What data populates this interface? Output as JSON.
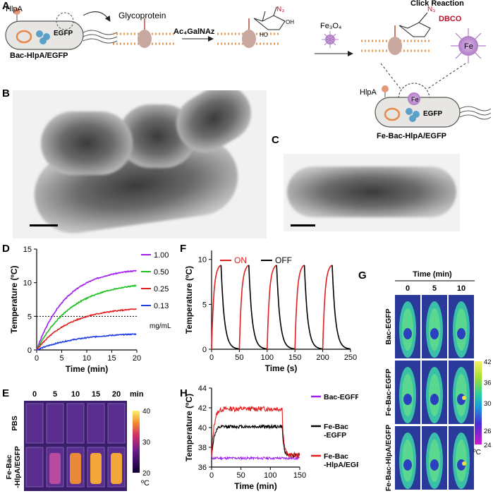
{
  "panel_labels": {
    "A": "A",
    "B": "B",
    "C": "C",
    "D": "D",
    "E": "E",
    "F": "F",
    "G": "G",
    "H": "H"
  },
  "panel_a": {
    "hlpa": "HlpA",
    "egfp": "EGFP",
    "bac_label": "Bac-HlpA/EGFP",
    "glycoprotein": "Glycoprotein",
    "ac4galnaz": "Ac₄GalNAz",
    "n3": "N₃",
    "fe3o4": "Fe₃O₄",
    "click_reaction": "Click Reaction",
    "dbco": "DBCO",
    "fe": "Fe",
    "fe_bac_label": "Fe-Bac-HlpA/EGFP",
    "sugar_oh": "OH",
    "sugar_ho": "HO",
    "sugar_o": "O",
    "sugar_nh": "N",
    "sugar_h": "H"
  },
  "chart_data": [
    {
      "id": "D",
      "type": "line",
      "xlabel": "Time (min)",
      "ylabel": "Temperature (ºC)",
      "xlim": [
        0,
        20
      ],
      "ylim": [
        0,
        15
      ],
      "xticks": [
        0,
        5,
        10,
        15,
        20
      ],
      "yticks": [
        0,
        5,
        10,
        15
      ],
      "reference_line": 5,
      "legend_unit": "mg/mL",
      "series": [
        {
          "name": "1.00",
          "color": "#a020f0",
          "plateau": 12.2,
          "rate": 0.17
        },
        {
          "name": "0.50",
          "color": "#1fbf1f",
          "plateau": 10.2,
          "rate": 0.14
        },
        {
          "name": "0.25",
          "color": "#e02020",
          "plateau": 6.4,
          "rate": 0.15
        },
        {
          "name": "0.13",
          "color": "#1f3fe0",
          "plateau": 2.6,
          "rate": 0.12
        }
      ]
    },
    {
      "id": "F",
      "type": "line",
      "xlabel": "Time (s)",
      "ylabel": "Temperature (ºC)",
      "xlim": [
        0,
        250
      ],
      "ylim": [
        0,
        11
      ],
      "xticks": [
        0,
        50,
        100,
        150,
        200,
        250
      ],
      "yticks": [
        0,
        5,
        10
      ],
      "cycles": 5,
      "cycle_starts": [
        0,
        50,
        100,
        150,
        200
      ],
      "on_duration": 17,
      "peak": 9.5,
      "series": [
        {
          "name": "ON",
          "color": "#e02020"
        },
        {
          "name": "OFF",
          "color": "#000000"
        }
      ]
    },
    {
      "id": "H",
      "type": "line",
      "xlabel": "Time (min)",
      "ylabel": "Temperature (ºC)",
      "xlim": [
        0,
        150
      ],
      "ylim": [
        36,
        44
      ],
      "xticks": [
        0,
        50,
        100,
        150
      ],
      "yticks": [
        36,
        38,
        40,
        42,
        44
      ],
      "laser_off": 120,
      "series": [
        {
          "name": "Bac-EGFP",
          "color": "#a020f0",
          "level": 36.9
        },
        {
          "name": "Fe-Bac\n-EGFP",
          "color": "#000000",
          "level": 40.1
        },
        {
          "name": "Fe-Bac\n-HlpA/EGFP",
          "color": "#e02020",
          "level": 41.9
        }
      ]
    },
    {
      "id": "E",
      "type": "heatmap",
      "time_labels": [
        "0",
        "5",
        "10",
        "15",
        "20"
      ],
      "time_unit": "min",
      "rows": [
        {
          "name": "PBS",
          "temps": [
            22,
            22,
            22,
            22,
            22
          ]
        },
        {
          "name": "Fe-Bac\n-HlpA/EGFP",
          "temps": [
            22,
            27,
            33,
            35,
            36
          ]
        }
      ],
      "colorbar_ticks": [
        "40",
        "30",
        "20"
      ],
      "colorbar_unit": "ºC"
    },
    {
      "id": "G",
      "type": "heatmap",
      "title": "Time (min)",
      "time_labels": [
        "0",
        "5",
        "10"
      ],
      "rows": [
        "Bac-EGFP",
        "Fe-Bac-EGFP",
        "Fe-Bac-HlpA/EGFP"
      ],
      "colorbar_ticks": [
        "42",
        "36",
        "30",
        "26",
        "24"
      ],
      "colorbar_unit": "ºC"
    }
  ]
}
